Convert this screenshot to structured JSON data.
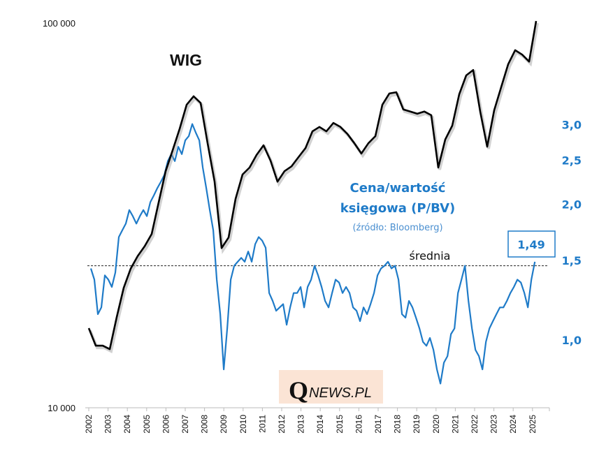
{
  "chart_data": {
    "type": "line",
    "title": "WIG",
    "annotation_title_line1": "Cena/wartość",
    "annotation_title_line2": "księgowa (P/BV)",
    "annotation_source": "(źródło: Bloomberg)",
    "average_label": "średnia",
    "last_value_label": "1,49",
    "logo_text": "QNEWS.PL",
    "logo_q": "Q",
    "logo_rest": "NEWS.PL",
    "x_ticks": [
      "2002",
      "2003",
      "2004",
      "2005",
      "2006",
      "2007",
      "2008",
      "2009",
      "2010",
      "2011",
      "2012",
      "2013",
      "2014",
      "2015",
      "2016",
      "2017",
      "2018",
      "2019",
      "2020",
      "2021",
      "2022",
      "2023",
      "2024",
      "2025"
    ],
    "left_axis": {
      "scale": "log",
      "range": [
        10000,
        100000
      ],
      "ticks": [
        {
          "value": 100000,
          "label": "100 000"
        },
        {
          "value": 10000,
          "label": "10 000"
        }
      ]
    },
    "right_axis": {
      "scale": "log",
      "ticks": [
        {
          "value": 3.0,
          "label": "3,0"
        },
        {
          "value": 2.5,
          "label": "2,5"
        },
        {
          "value": 2.0,
          "label": "2,0"
        },
        {
          "value": 1.5,
          "label": "1,5"
        },
        {
          "value": 1.0,
          "label": "1,0"
        }
      ]
    },
    "average": 1.46,
    "colors": {
      "wig": "#000000",
      "pbv": "#1f7bc8",
      "logo_bg": "#fbe4d5"
    },
    "series": [
      {
        "name": "WIG",
        "axis": "left",
        "start_year": 2002.0,
        "step_years": 0.3623,
        "values": [
          16100,
          14500,
          14500,
          14200,
          17200,
          20500,
          23000,
          24800,
          26300,
          28300,
          34200,
          41200,
          46700,
          53100,
          61300,
          64500,
          62000,
          48700,
          38700,
          26000,
          27700,
          34900,
          40400,
          42100,
          45400,
          48100,
          43900,
          38700,
          41200,
          42400,
          44800,
          47300,
          52300,
          53700,
          52300,
          55000,
          53700,
          51500,
          48700,
          45800,
          48700,
          50800,
          61300,
          65600,
          66100,
          59600,
          58900,
          58100,
          58900,
          57600,
          42100,
          49800,
          54100,
          65300,
          73100,
          75500,
          58900,
          47700,
          59300,
          68100,
          78100,
          85000,
          82800,
          79400,
          101200
        ]
      },
      {
        "name": "P/BV",
        "axis": "right",
        "start_year": 2002.11,
        "step_years": 0.1812,
        "values": [
          1.44,
          1.36,
          1.14,
          1.18,
          1.39,
          1.36,
          1.31,
          1.41,
          1.69,
          1.75,
          1.81,
          1.94,
          1.88,
          1.81,
          1.88,
          1.94,
          1.88,
          2.02,
          2.09,
          2.17,
          2.24,
          2.32,
          2.49,
          2.58,
          2.49,
          2.68,
          2.58,
          2.77,
          2.83,
          3.01,
          2.88,
          2.77,
          2.41,
          2.17,
          1.94,
          1.75,
          1.36,
          1.14,
          0.86,
          1.06,
          1.36,
          1.46,
          1.49,
          1.52,
          1.49,
          1.57,
          1.49,
          1.63,
          1.69,
          1.66,
          1.6,
          1.27,
          1.22,
          1.16,
          1.18,
          1.2,
          1.08,
          1.18,
          1.27,
          1.27,
          1.31,
          1.18,
          1.31,
          1.36,
          1.46,
          1.39,
          1.31,
          1.22,
          1.18,
          1.27,
          1.36,
          1.34,
          1.27,
          1.31,
          1.27,
          1.18,
          1.16,
          1.1,
          1.18,
          1.14,
          1.2,
          1.27,
          1.39,
          1.44,
          1.46,
          1.49,
          1.44,
          1.46,
          1.36,
          1.14,
          1.12,
          1.22,
          1.18,
          1.12,
          1.06,
          0.99,
          0.97,
          1.01,
          0.95,
          0.86,
          0.8,
          0.89,
          0.92,
          1.03,
          1.06,
          1.27,
          1.36,
          1.46,
          1.22,
          1.06,
          0.95,
          0.92,
          0.86,
          0.99,
          1.06,
          1.1,
          1.14,
          1.18,
          1.18,
          1.22,
          1.27,
          1.31,
          1.36,
          1.34,
          1.27,
          1.18,
          1.36,
          1.49
        ]
      }
    ]
  }
}
